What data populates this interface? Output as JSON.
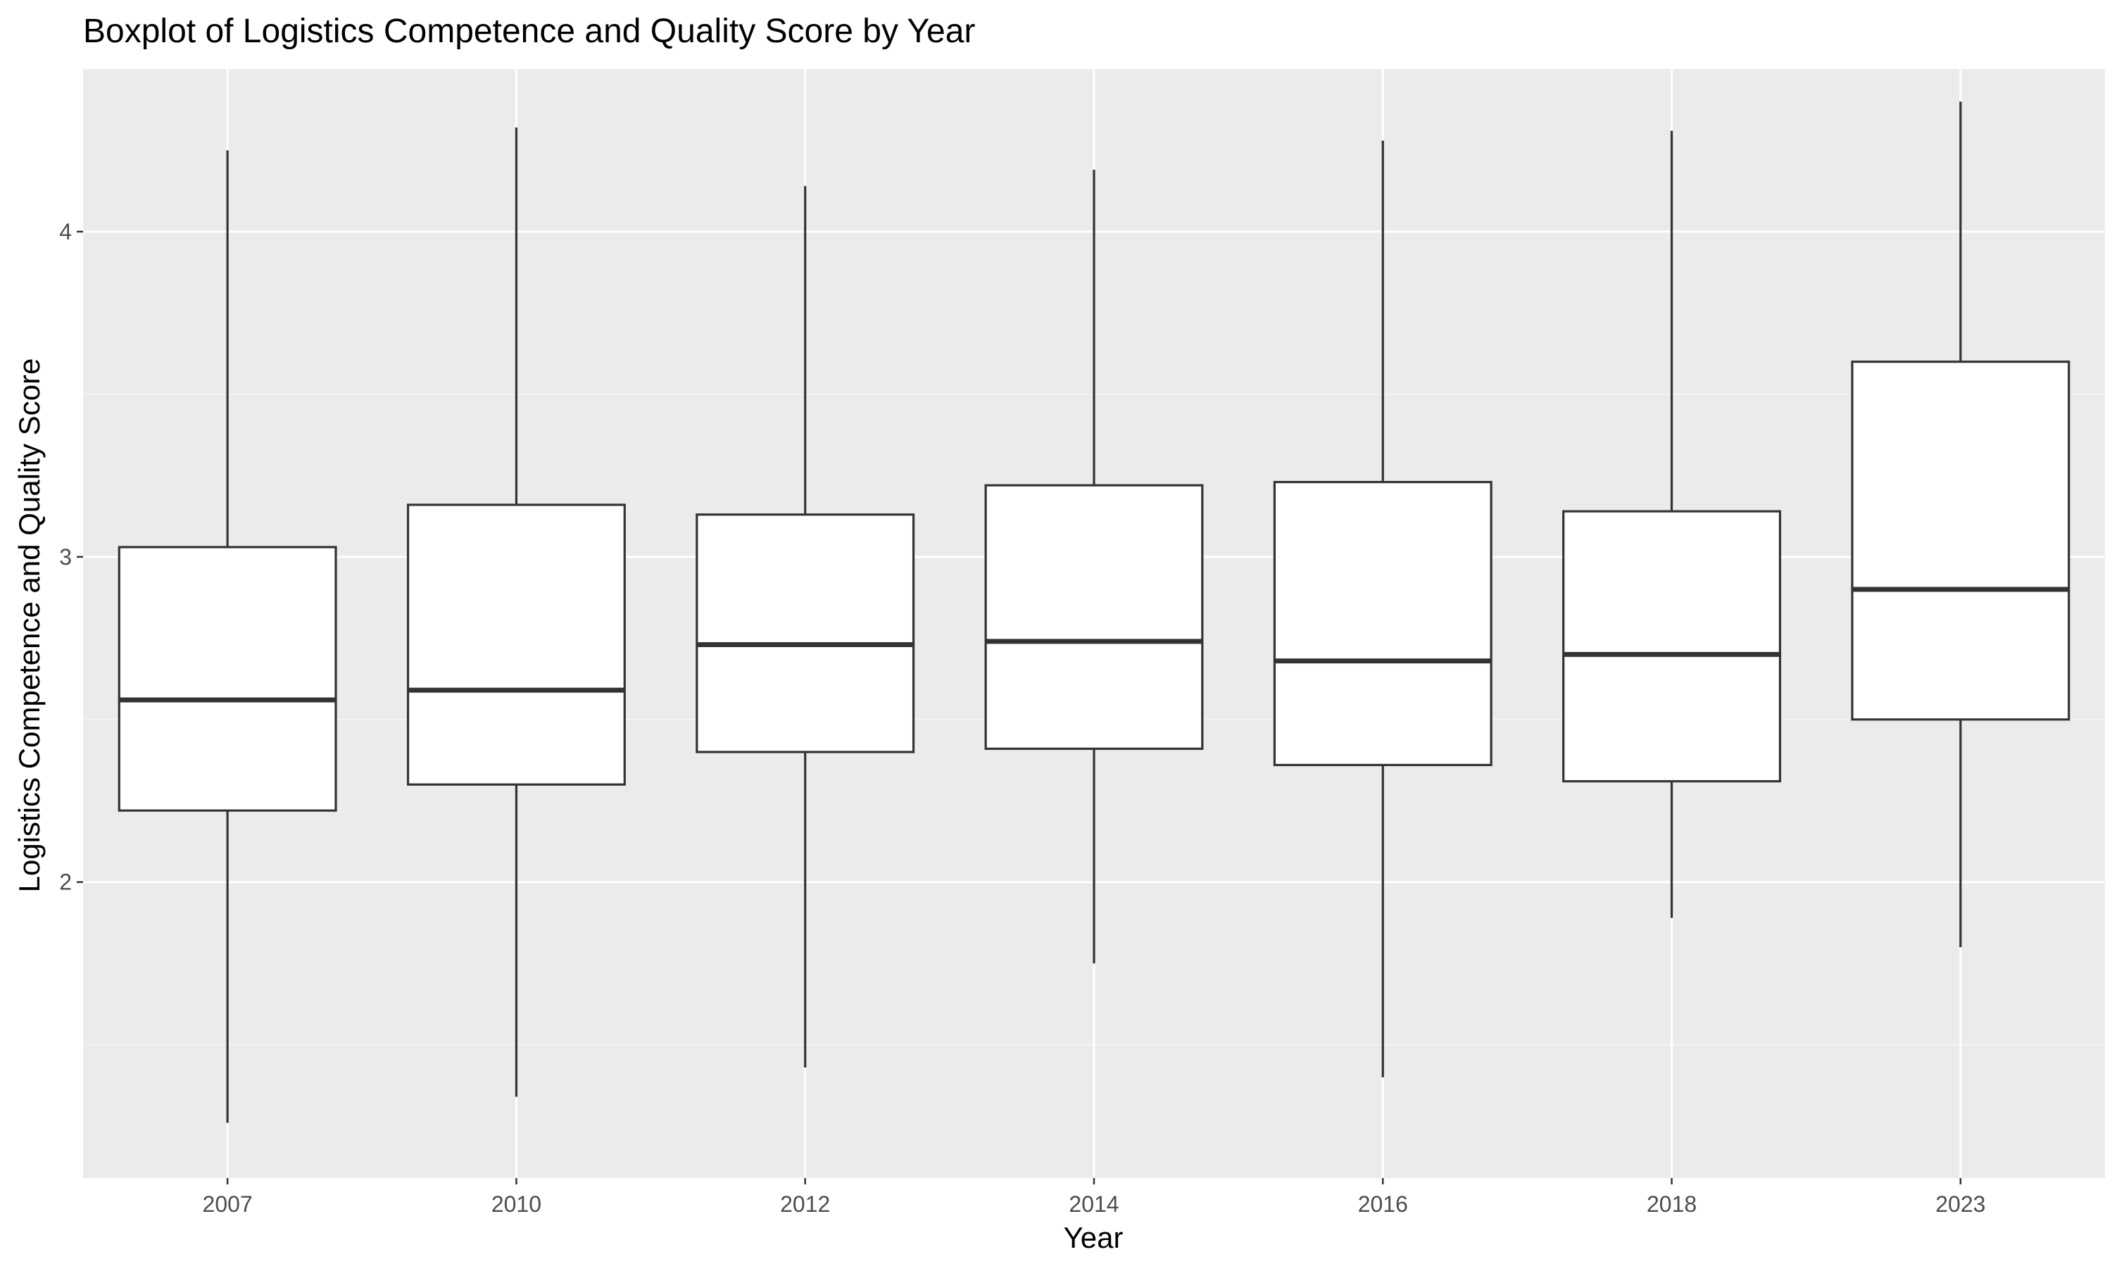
{
  "chart_data": {
    "type": "boxplot",
    "title": "Boxplot of Logistics Competence and Quality Score by Year",
    "xlabel": "Year",
    "ylabel": "Logistics Competence and Quality Score",
    "categories": [
      "2007",
      "2010",
      "2012",
      "2014",
      "2016",
      "2018",
      "2023"
    ],
    "ylim": [
      1.09,
      4.5
    ],
    "yticks": [
      2,
      3,
      4
    ],
    "grid": true,
    "boxes": [
      {
        "category": "2007",
        "min": 1.26,
        "q1": 2.22,
        "median": 2.56,
        "q3": 3.03,
        "max": 4.25
      },
      {
        "category": "2010",
        "min": 1.34,
        "q1": 2.3,
        "median": 2.59,
        "q3": 3.16,
        "max": 4.32
      },
      {
        "category": "2012",
        "min": 1.43,
        "q1": 2.4,
        "median": 2.73,
        "q3": 3.13,
        "max": 4.14
      },
      {
        "category": "2014",
        "min": 1.75,
        "q1": 2.41,
        "median": 2.74,
        "q3": 3.22,
        "max": 4.19
      },
      {
        "category": "2016",
        "min": 1.4,
        "q1": 2.36,
        "median": 2.68,
        "q3": 3.23,
        "max": 4.28
      },
      {
        "category": "2018",
        "min": 1.89,
        "q1": 2.31,
        "median": 2.7,
        "q3": 3.14,
        "max": 4.31
      },
      {
        "category": "2023",
        "min": 1.8,
        "q1": 2.5,
        "median": 2.9,
        "q3": 3.6,
        "max": 4.4
      }
    ],
    "colors": {
      "panel_background": "#ebebeb",
      "grid_major": "#ffffff",
      "grid_minor": "#f5f5f5",
      "box_fill": "#ffffff",
      "box_stroke": "#333333",
      "tick_text": "#4d4d4d",
      "text": "#000000"
    }
  }
}
